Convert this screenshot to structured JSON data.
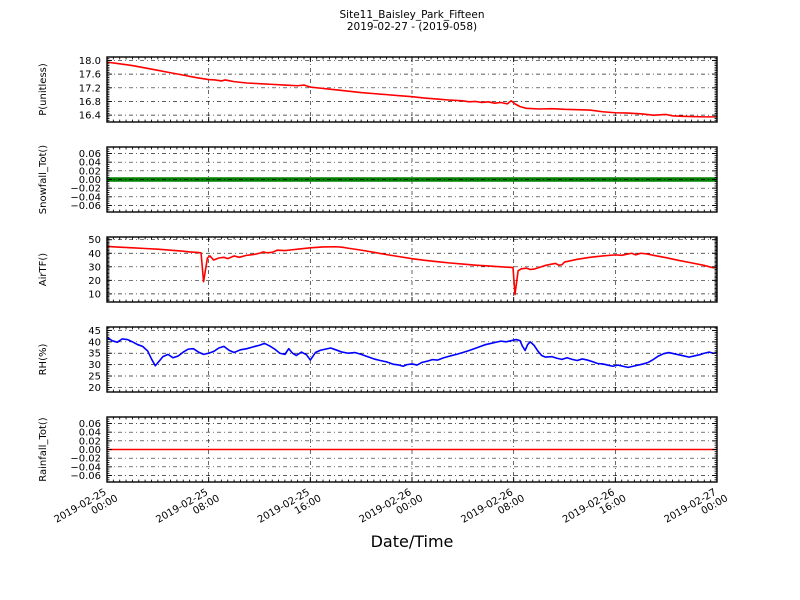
{
  "figure": {
    "title": "Site11_Baisley_Park_Fifteen",
    "subtitle": "2019-02-27 - (2019-058)",
    "xlabel": "Date/Time",
    "background": "#ffffff",
    "frame_color": "#000000",
    "grid_color": "#000000"
  },
  "x_axis": {
    "range_hours": [
      0,
      48
    ],
    "tick_hours": [
      0,
      8,
      16,
      24,
      32,
      40,
      48
    ],
    "tick_labels": [
      "2019-02-25\n00:00",
      "2019-02-25\n08:00",
      "2019-02-25\n16:00",
      "2019-02-26\n00:00",
      "2019-02-26\n08:00",
      "2019-02-26\n16:00",
      "2019-02-27\n00:00"
    ]
  },
  "chart_data": [
    {
      "type": "line",
      "ylabel": "P(unitless)",
      "color": "#ff0000",
      "line_width": 1.6,
      "ylim": [
        16.2,
        18.1
      ],
      "ytick_values": [
        18.0,
        17.6,
        17.2,
        16.8,
        16.4
      ],
      "ytick_labels": [
        "18.0",
        "17.6",
        "17.2",
        "16.8",
        "16.4"
      ],
      "grid": true,
      "x": [
        0,
        1,
        2,
        3,
        4,
        5,
        6,
        7,
        7.5,
        8,
        8.5,
        9,
        9.3,
        9.7,
        10,
        11,
        12,
        13,
        14,
        15,
        15.5,
        16,
        17,
        18,
        19,
        20,
        21,
        22,
        23,
        24,
        25,
        26,
        27,
        28,
        28.5,
        29,
        29.5,
        30,
        30.5,
        31,
        31.5,
        31.8,
        32.1,
        32.5,
        33,
        34,
        35,
        36,
        37,
        38,
        39,
        40,
        41,
        42,
        43,
        44,
        44.5,
        45,
        46,
        47,
        48
      ],
      "y": [
        17.95,
        17.9,
        17.85,
        17.78,
        17.71,
        17.64,
        17.57,
        17.5,
        17.47,
        17.44,
        17.43,
        17.4,
        17.43,
        17.4,
        17.38,
        17.34,
        17.32,
        17.3,
        17.28,
        17.26,
        17.28,
        17.22,
        17.18,
        17.14,
        17.1,
        17.06,
        17.03,
        17.0,
        16.97,
        16.94,
        16.9,
        16.87,
        16.84,
        16.82,
        16.79,
        16.8,
        16.77,
        16.79,
        16.75,
        16.77,
        16.73,
        16.82,
        16.73,
        16.65,
        16.6,
        16.58,
        16.59,
        16.57,
        16.56,
        16.55,
        16.5,
        16.47,
        16.46,
        16.44,
        16.4,
        16.42,
        16.38,
        16.37,
        16.36,
        16.35,
        16.35
      ]
    },
    {
      "type": "line",
      "ylabel": "Snowfall_Tot()",
      "color": "#008000",
      "line_width": 4.5,
      "zero_grid_on_top": true,
      "ylim": [
        -0.075,
        0.075
      ],
      "ytick_values": [
        0.06,
        0.04,
        0.02,
        0.0,
        -0.02,
        -0.04,
        -0.06
      ],
      "ytick_labels": [
        "0.06",
        "0.04",
        "0.02",
        "0.00",
        "−0.02",
        "−0.04",
        "−0.06"
      ],
      "grid": true,
      "x": [
        0,
        48
      ],
      "y": [
        0,
        0
      ]
    },
    {
      "type": "line",
      "ylabel": "AirTF()",
      "color": "#ff0000",
      "line_width": 1.6,
      "ylim": [
        4,
        52
      ],
      "ytick_values": [
        50,
        40,
        30,
        20,
        10
      ],
      "ytick_labels": [
        "50",
        "40",
        "30",
        "20",
        "10"
      ],
      "grid": true,
      "x": [
        0,
        1,
        2,
        3,
        4,
        5,
        6,
        6.5,
        7,
        7.4,
        7.6,
        7.9,
        8.1,
        8.4,
        8.8,
        9.2,
        9.5,
        10,
        10.4,
        11,
        11.5,
        12,
        12.3,
        12.6,
        13,
        13.4,
        14,
        14.5,
        15,
        16,
        17,
        18,
        18.5,
        19,
        20,
        21,
        22,
        23,
        24,
        25,
        26,
        27,
        28,
        29,
        30,
        31,
        31.7,
        31.95,
        32.1,
        32.35,
        32.6,
        33,
        33.3,
        33.6,
        34,
        34.5,
        35,
        35.3,
        35.55,
        35.8,
        36,
        36.5,
        37,
        38,
        39,
        40,
        40.5,
        41,
        41.3,
        41.6,
        42,
        42.5,
        43,
        44,
        45,
        46,
        47,
        47.4,
        47.7,
        48
      ],
      "y": [
        45,
        44.5,
        44,
        43.5,
        43,
        42.3,
        41.5,
        41,
        40.7,
        40.3,
        19,
        36.5,
        38,
        35,
        36.5,
        37,
        36,
        38,
        37,
        38.5,
        39,
        40,
        41,
        40.3,
        40.7,
        42.3,
        42,
        42.5,
        43,
        44,
        44.7,
        44.8,
        44.5,
        43.7,
        42.3,
        40.7,
        39,
        37.5,
        36,
        34.8,
        33.8,
        32.8,
        32,
        31.2,
        30.6,
        30,
        29.6,
        29.4,
        9.5,
        27,
        28.5,
        29,
        28,
        28.3,
        29.5,
        31,
        32,
        32.5,
        31.2,
        31.5,
        33.5,
        34.5,
        35.5,
        37,
        38,
        38.8,
        38.5,
        39.5,
        40,
        38.8,
        40,
        39.5,
        38.5,
        36.7,
        34.7,
        32.9,
        31,
        30,
        29.3,
        29.6
      ]
    },
    {
      "type": "line",
      "ylabel": "RH(%)",
      "color": "#0000ff",
      "line_width": 1.6,
      "ylim": [
        18,
        46.5
      ],
      "ytick_values": [
        45,
        40,
        35,
        30,
        25,
        20
      ],
      "ytick_labels": [
        "45",
        "40",
        "35",
        "30",
        "25",
        "20"
      ],
      "grid": true,
      "x": [
        0,
        0.4,
        0.8,
        1.2,
        1.6,
        2,
        2.4,
        2.8,
        3.2,
        3.5,
        3.8,
        4.1,
        4.4,
        4.8,
        5.2,
        5.6,
        6,
        6.4,
        6.8,
        7.2,
        7.6,
        8,
        8.4,
        8.8,
        9.2,
        9.6,
        10,
        10.5,
        11,
        11.5,
        12,
        12.4,
        12.8,
        13.2,
        13.6,
        14,
        14.3,
        14.6,
        14.9,
        15.3,
        15.7,
        16,
        16.4,
        16.8,
        17.2,
        17.6,
        18,
        18.5,
        19,
        19.5,
        20,
        20.5,
        21,
        21.5,
        22,
        22.5,
        23,
        23.3,
        23.6,
        24,
        24.4,
        24.8,
        25.2,
        25.6,
        26,
        26.5,
        27,
        27.5,
        28,
        28.5,
        29,
        29.4,
        29.8,
        30.2,
        30.6,
        31,
        31.4,
        31.8,
        32.2,
        32.5,
        32.7,
        32.9,
        33.1,
        33.3,
        33.6,
        33.9,
        34.2,
        34.5,
        35,
        35.4,
        35.8,
        36.2,
        36.6,
        37,
        37.4,
        37.8,
        38.2,
        38.6,
        39,
        39.4,
        39.8,
        40.2,
        40.6,
        41,
        41.4,
        41.8,
        42.2,
        42.6,
        43,
        43.4,
        43.8,
        44.2,
        44.6,
        45,
        45.4,
        45.8,
        46.2,
        46.6,
        47,
        47.4,
        47.7,
        48
      ],
      "y": [
        42,
        40.5,
        39.8,
        41.3,
        41,
        40,
        38.8,
        38,
        36,
        32.5,
        29.5,
        31.5,
        33.5,
        34.5,
        33,
        33.8,
        35.5,
        36.8,
        37,
        35.5,
        34.5,
        35,
        35.8,
        37.3,
        38,
        36.3,
        35.3,
        36.5,
        37,
        37.8,
        38.5,
        39.3,
        38.2,
        36.8,
        35,
        34.5,
        37,
        35,
        34,
        35.5,
        34.3,
        32,
        35.3,
        36.3,
        36.8,
        37.3,
        36.5,
        35.5,
        35,
        35.3,
        34.5,
        33.5,
        32.5,
        31.8,
        31.2,
        30.2,
        29.8,
        29.3,
        30,
        30.3,
        29.8,
        31,
        31.5,
        32.2,
        32,
        33,
        33.8,
        34.5,
        35.3,
        36.2,
        37.2,
        38,
        38.8,
        39.3,
        39.8,
        40.3,
        40,
        40.5,
        41,
        40.5,
        38,
        36.2,
        38.8,
        40,
        38.5,
        36,
        34,
        33.3,
        33.5,
        32.8,
        32.3,
        33,
        32.3,
        31.8,
        32.5,
        32,
        31.3,
        30.5,
        30.3,
        29.8,
        29.3,
        29.8,
        29.3,
        28.8,
        29.3,
        29.8,
        30.3,
        31,
        32.3,
        33.8,
        34.8,
        35.3,
        34.8,
        34.3,
        33.8,
        33.3,
        33.8,
        34.3,
        35,
        35.5,
        35,
        35.3
      ]
    },
    {
      "type": "line",
      "ylabel": "Rainfall_Tot()",
      "color": "#ff0000",
      "line_width": 1.4,
      "ylim": [
        -0.075,
        0.075
      ],
      "ytick_values": [
        0.06,
        0.04,
        0.02,
        0.0,
        -0.02,
        -0.04,
        -0.06
      ],
      "ytick_labels": [
        "0.06",
        "0.04",
        "0.02",
        "0.00",
        "−0.02",
        "−0.04",
        "−0.06"
      ],
      "grid": true,
      "x": [
        0,
        48
      ],
      "y": [
        0,
        0
      ]
    }
  ]
}
